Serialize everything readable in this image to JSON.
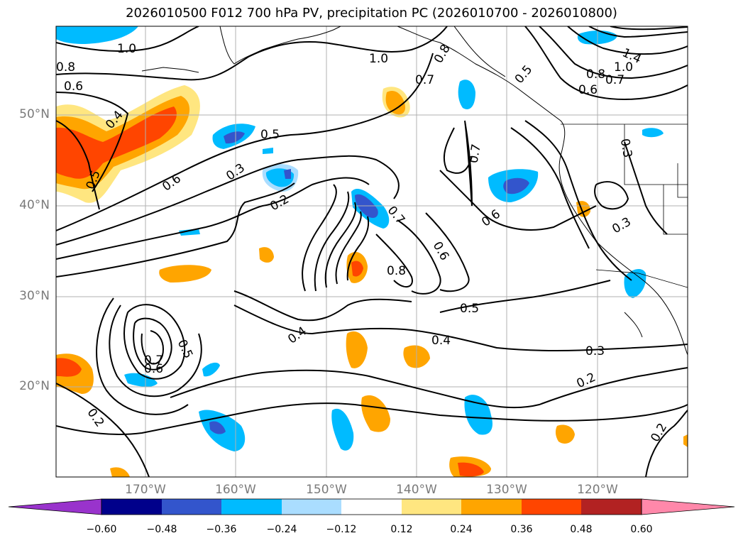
{
  "title": "2026010500 F012 700 hPa PV, precipitation PC (2026010700 - 2026010800)",
  "map": {
    "lat_labels": [
      "50°N",
      "40°N",
      "30°N",
      "20°N"
    ],
    "lon_labels": [
      "170°W",
      "160°W",
      "150°W",
      "140°W",
      "130°W",
      "120°W"
    ],
    "contour_labels": [
      "1.0",
      "1.0",
      "0.8",
      "0.6",
      "0.4",
      "0.5",
      "0.5",
      "0.6",
      "0.3",
      "0.2",
      "0.7",
      "0.7",
      "0.6",
      "0.7",
      "0.8",
      "0.6",
      "0.5",
      "0.4",
      "0.4",
      "0.5",
      "0.7",
      "0.6",
      "0.3",
      "0.2",
      "0.2",
      "0.2",
      "0.3",
      "0.3",
      "1.4",
      "1.0",
      "0.8",
      "0.7",
      "0.6",
      "0.5",
      "0.8"
    ]
  },
  "colorbar": {
    "ticks": [
      "−0.60",
      "−0.48",
      "−0.36",
      "−0.24",
      "−0.12",
      "0.12",
      "0.24",
      "0.36",
      "0.48",
      "0.60"
    ],
    "colors": [
      "#9933cc",
      "#00008b",
      "#3355cc",
      "#00bbff",
      "#aaddff",
      "#ffffff",
      "#ffe680",
      "#ffa500",
      "#ff4500",
      "#b22222",
      "#ff88aa"
    ]
  }
}
